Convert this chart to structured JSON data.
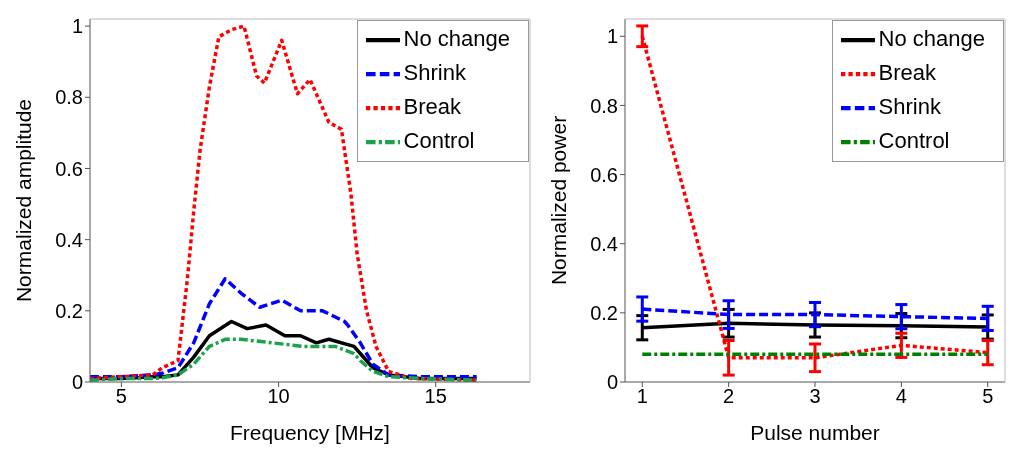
{
  "chart_data": [
    {
      "type": "line",
      "xlabel": "Frequency [MHz]",
      "ylabel": "Normalized amplitude",
      "xlim": [
        4,
        18
      ],
      "xticks": [
        5,
        10,
        15
      ],
      "ylim": [
        0,
        1.02
      ],
      "yticks": [
        0,
        0.2,
        0.4,
        0.6,
        0.8,
        1
      ],
      "grid": false,
      "legend": "top right",
      "marker": "none",
      "series": [
        {
          "name": "No change",
          "color": "#000000",
          "line_style": "solid",
          "x": [
            4,
            5,
            6,
            6.3,
            6.8,
            7.3,
            7.8,
            8.5,
            9,
            9.6,
            10.2,
            10.7,
            11.2,
            11.6,
            12.4,
            12.6,
            13,
            13.5,
            14.5,
            16.3
          ],
          "values": [
            0.01,
            0.01,
            0.015,
            0.015,
            0.02,
            0.07,
            0.13,
            0.17,
            0.15,
            0.16,
            0.13,
            0.13,
            0.11,
            0.12,
            0.1,
            0.08,
            0.04,
            0.02,
            0.01,
            0.01
          ]
        },
        {
          "name": "Shrink",
          "color": "#0000ff",
          "line_style": "dashed",
          "x": [
            4,
            5,
            6,
            6.3,
            6.8,
            7.3,
            7.8,
            8.3,
            8.8,
            9.4,
            10.1,
            10.7,
            11.4,
            12.1,
            12.2,
            12.6,
            13,
            13.5,
            14.5,
            16.3
          ],
          "values": [
            0.015,
            0.015,
            0.02,
            0.025,
            0.04,
            0.11,
            0.22,
            0.29,
            0.25,
            0.21,
            0.23,
            0.2,
            0.2,
            0.17,
            0.16,
            0.11,
            0.05,
            0.02,
            0.015,
            0.015
          ]
        },
        {
          "name": "Break",
          "color": "#ff0000",
          "line_style": "dotted",
          "x": [
            4,
            5,
            6,
            6.3,
            6.8,
            7.1,
            7.3,
            7.5,
            7.8,
            8.1,
            8.5,
            8.9,
            9.3,
            9.55,
            10.1,
            10.6,
            11,
            11.6,
            12,
            12.3,
            12.5,
            12.8,
            13.1,
            13.5,
            14.2,
            16.3
          ],
          "values": [
            0.01,
            0.015,
            0.02,
            0.04,
            0.06,
            0.29,
            0.48,
            0.65,
            0.83,
            0.97,
            0.99,
            1,
            0.86,
            0.84,
            0.96,
            0.81,
            0.85,
            0.73,
            0.71,
            0.53,
            0.36,
            0.2,
            0.1,
            0.03,
            0.01,
            0.005
          ]
        },
        {
          "name": "Control",
          "color": "#1aa34a",
          "line_style": "dashdot",
          "x": [
            4,
            5,
            6,
            6.3,
            6.8,
            7.3,
            7.8,
            8.3,
            8.8,
            9.8,
            10.8,
            11.8,
            12.4,
            12.6,
            13,
            13.5,
            14.5,
            16.3
          ],
          "values": [
            0.005,
            0.01,
            0.01,
            0.012,
            0.02,
            0.05,
            0.1,
            0.12,
            0.12,
            0.11,
            0.1,
            0.1,
            0.08,
            0.06,
            0.03,
            0.015,
            0.01,
            0.005
          ]
        }
      ]
    },
    {
      "type": "line",
      "xlabel": "Pulse number",
      "ylabel": "Normalized power",
      "x": [
        1,
        2,
        3,
        4,
        5
      ],
      "xlim": [
        0.8,
        5.2
      ],
      "xticks": [
        1,
        2,
        3,
        4,
        5
      ],
      "ylim": [
        0,
        1.05
      ],
      "yticks": [
        0,
        0.2,
        0.4,
        0.6,
        0.8,
        1
      ],
      "grid": false,
      "legend": "top right",
      "marker": "none",
      "series": [
        {
          "name": "No change",
          "color": "#000000",
          "line_style": "solid",
          "values": [
            0.157,
            0.17,
            0.165,
            0.163,
            0.159
          ],
          "errors": [
            0.035,
            0.04,
            0.035,
            0.035,
            0.035
          ]
        },
        {
          "name": "Break",
          "color": "#ff0000",
          "line_style": "dotted",
          "values": [
            1,
            0.07,
            0.07,
            0.106,
            0.085
          ],
          "errors": [
            0.03,
            0.05,
            0.04,
            0.035,
            0.035
          ]
        },
        {
          "name": "Shrink",
          "color": "#0000ff",
          "line_style": "dashed",
          "values": [
            0.211,
            0.195,
            0.195,
            0.189,
            0.184
          ],
          "errors": [
            0.035,
            0.04,
            0.035,
            0.035,
            0.035
          ]
        },
        {
          "name": "Control",
          "color": "#008000",
          "line_style": "dashdot",
          "values": [
            0.08,
            0.08,
            0.08,
            0.08,
            0.08
          ]
        }
      ]
    }
  ]
}
